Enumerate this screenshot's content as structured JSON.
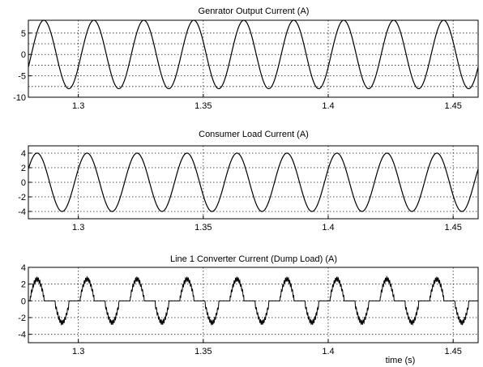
{
  "chart_data": [
    {
      "type": "line",
      "title": "Genrator Output Current (A)",
      "xlim": [
        1.28,
        1.46
      ],
      "ylim": [
        -10,
        8
      ],
      "xticks": [
        1.3,
        1.35,
        1.4,
        1.45
      ],
      "xtick_labels": [
        "1.3",
        "1.35",
        "1.4",
        "1.45"
      ],
      "yticks": [
        5,
        0,
        -5,
        -10
      ],
      "ytick_labels": [
        "5",
        "0",
        "-5",
        "-10"
      ],
      "ygrid": [
        5,
        2.5,
        0,
        -2.5,
        -5,
        -7.5
      ],
      "grid": true,
      "xlabel": "",
      "series": [
        {
          "waveform": "sine",
          "frequency_hz": 50,
          "amplitude": 8,
          "peak_at": 1.2862,
          "x_start": 1.28,
          "x_end": 1.46
        }
      ]
    },
    {
      "type": "line",
      "title": "Consumer Load Current (A)",
      "xlim": [
        1.28,
        1.46
      ],
      "ylim": [
        -5,
        5
      ],
      "xticks": [
        1.3,
        1.35,
        1.4,
        1.45
      ],
      "xtick_labels": [
        "1.3",
        "1.35",
        "1.4",
        "1.45"
      ],
      "yticks": [
        4,
        2,
        0,
        -2,
        -4
      ],
      "ytick_labels": [
        "4",
        "2",
        "0",
        "-2",
        "-4"
      ],
      "ygrid": [
        4,
        2,
        0,
        -2,
        -4
      ],
      "grid": true,
      "xlabel": "",
      "series": [
        {
          "waveform": "sine",
          "frequency_hz": 50,
          "amplitude": 4,
          "peak_at": 1.2835,
          "x_start": 1.28,
          "x_end": 1.46
        }
      ]
    },
    {
      "type": "line",
      "title": "Line 1 Converter Current (Dump Load)  (A)",
      "xlim": [
        1.28,
        1.46
      ],
      "ylim": [
        -5,
        4
      ],
      "xticks": [
        1.3,
        1.35,
        1.4,
        1.45
      ],
      "xtick_labels": [
        "1.3",
        "1.35",
        "1.4",
        "1.45"
      ],
      "yticks": [
        4,
        2,
        0,
        -2,
        -4
      ],
      "ytick_labels": [
        "4",
        "2",
        "0",
        "-2",
        "-4"
      ],
      "ygrid": [
        4,
        2,
        0,
        -2,
        -4
      ],
      "grid": true,
      "xlabel": "time (s)",
      "series": [
        {
          "waveform": "phase-controlled pulses",
          "frequency_hz": 50,
          "amplitude": 2.6,
          "positive_peak_at": 1.2835,
          "pulse_width_s": 0.0055,
          "x_start": 1.28,
          "x_end": 1.46
        }
      ]
    }
  ]
}
